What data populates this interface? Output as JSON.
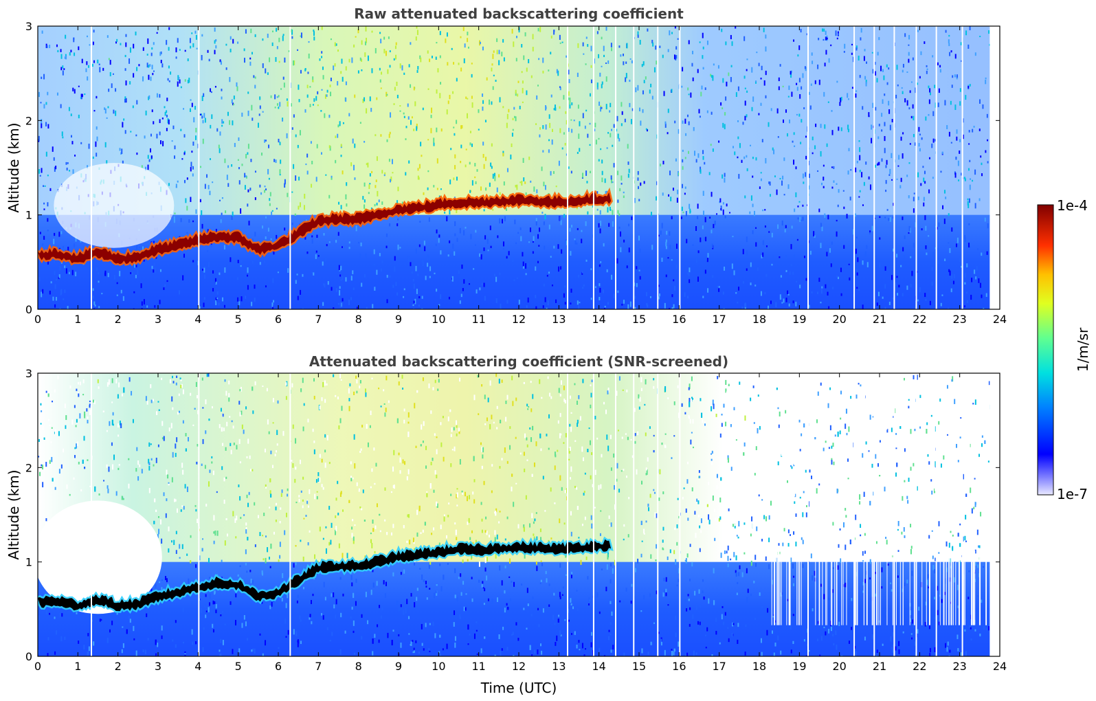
{
  "chart_data": [
    {
      "type": "heatmap",
      "title": "Raw attenuated backscattering coefficient",
      "xlabel": "",
      "ylabel": "Altitude (km)",
      "xlim": [
        0,
        24
      ],
      "ylim": [
        0,
        3
      ],
      "xticks": [
        "0",
        "1",
        "2",
        "3",
        "4",
        "5",
        "6",
        "7",
        "8",
        "9",
        "10",
        "11",
        "12",
        "13",
        "14",
        "15",
        "16",
        "17",
        "18",
        "19",
        "20",
        "21",
        "22",
        "23",
        "24"
      ],
      "yticks": [
        "0",
        "1",
        "2",
        "3"
      ],
      "data_end_hour": 23.75,
      "layer_top_km": [
        [
          0.0,
          0.62
        ],
        [
          0.5,
          0.63
        ],
        [
          1.0,
          0.58
        ],
        [
          1.5,
          0.65
        ],
        [
          2.0,
          0.58
        ],
        [
          2.5,
          0.6
        ],
        [
          3.0,
          0.68
        ],
        [
          3.5,
          0.72
        ],
        [
          4.0,
          0.78
        ],
        [
          4.5,
          0.82
        ],
        [
          5.0,
          0.8
        ],
        [
          5.5,
          0.68
        ],
        [
          6.0,
          0.72
        ],
        [
          6.5,
          0.85
        ],
        [
          7.0,
          0.98
        ],
        [
          7.5,
          1.0
        ],
        [
          8.0,
          1.0
        ],
        [
          8.5,
          1.05
        ],
        [
          9.0,
          1.1
        ],
        [
          9.5,
          1.12
        ],
        [
          10.0,
          1.15
        ],
        [
          10.5,
          1.18
        ],
        [
          11.0,
          1.17
        ],
        [
          11.5,
          1.19
        ],
        [
          12.0,
          1.2
        ],
        [
          12.5,
          1.19
        ],
        [
          13.0,
          1.18
        ],
        [
          13.5,
          1.2
        ],
        [
          14.3,
          1.22
        ]
      ],
      "layer_band": "cloud base (saturated, dark red)",
      "data_gaps_hours": [
        1.32,
        4.0,
        6.28,
        13.2,
        13.85,
        14.4,
        14.85,
        15.45,
        16.0,
        19.2,
        20.35,
        20.85,
        21.35,
        21.9,
        22.4,
        23.05
      ],
      "colormap": "jet",
      "colorbar": {
        "min_label": "1e-7",
        "max_label": "1e-4",
        "label": "1/m/sr",
        "scale": "log"
      }
    },
    {
      "type": "heatmap",
      "title": "Attenuated backscattering coefficient (SNR-screened)",
      "xlabel": "Time (UTC)",
      "ylabel": "Altitude (km)",
      "xlim": [
        0,
        24
      ],
      "ylim": [
        0,
        3
      ],
      "xticks": [
        "0",
        "1",
        "2",
        "3",
        "4",
        "5",
        "6",
        "7",
        "8",
        "9",
        "10",
        "11",
        "12",
        "13",
        "14",
        "15",
        "16",
        "17",
        "18",
        "19",
        "20",
        "21",
        "22",
        "23",
        "24"
      ],
      "yticks": [
        "0",
        "1",
        "2",
        "3"
      ],
      "data_end_hour": 23.75,
      "layer_top_km": [
        [
          0.0,
          0.62
        ],
        [
          0.5,
          0.63
        ],
        [
          1.0,
          0.58
        ],
        [
          1.5,
          0.65
        ],
        [
          2.0,
          0.58
        ],
        [
          2.5,
          0.6
        ],
        [
          3.0,
          0.68
        ],
        [
          3.5,
          0.72
        ],
        [
          4.0,
          0.78
        ],
        [
          4.5,
          0.82
        ],
        [
          5.0,
          0.8
        ],
        [
          5.5,
          0.68
        ],
        [
          6.0,
          0.72
        ],
        [
          6.5,
          0.85
        ],
        [
          7.0,
          0.98
        ],
        [
          7.5,
          1.0
        ],
        [
          8.0,
          1.0
        ],
        [
          8.5,
          1.05
        ],
        [
          9.0,
          1.1
        ],
        [
          9.5,
          1.12
        ],
        [
          10.0,
          1.15
        ],
        [
          10.5,
          1.18
        ],
        [
          11.0,
          1.17
        ],
        [
          11.5,
          1.19
        ],
        [
          12.0,
          1.2
        ],
        [
          12.5,
          1.19
        ],
        [
          13.0,
          1.18
        ],
        [
          13.5,
          1.2
        ],
        [
          14.3,
          1.22
        ]
      ],
      "layer_band": "cloud base (screened, black)",
      "data_gaps_hours": [
        1.32,
        4.0,
        6.28,
        13.2,
        13.85,
        14.4,
        14.85,
        15.45,
        16.0,
        19.2,
        20.35,
        20.85,
        21.35,
        21.9,
        22.4,
        23.05
      ],
      "colormap": "jet",
      "colorbar": {
        "min_label": "1e-7",
        "max_label": "1e-4",
        "label": "1/m/sr",
        "scale": "log"
      }
    }
  ],
  "colors": {
    "background_haze": "#6fe08e",
    "boundary_layer": "#1e5bff",
    "cloud_raw": "#8b0000",
    "cloud_screened": "#000000",
    "title": "#404040"
  }
}
